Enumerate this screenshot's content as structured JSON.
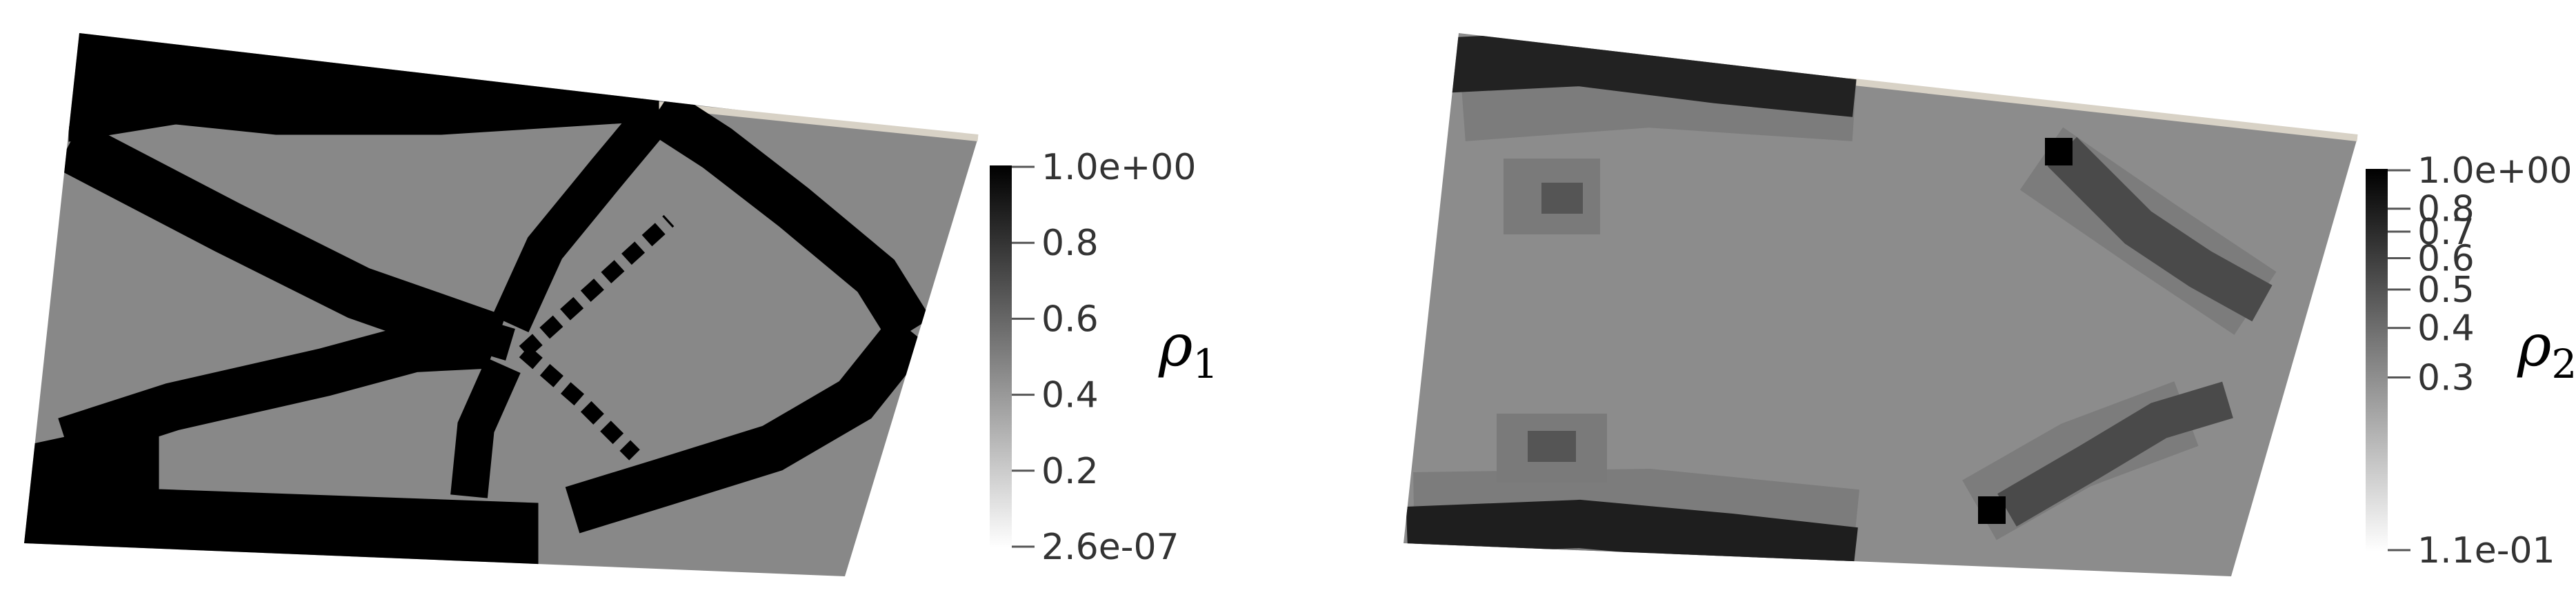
{
  "panels": [
    {
      "symbol": "ρ",
      "subscript": "1",
      "colorbar": {
        "max_label": "1.0e+00",
        "min_label": "2.6e-07",
        "ticks": [
          {
            "label": "0.8",
            "value": 0.8
          },
          {
            "label": "0.6",
            "value": 0.6
          },
          {
            "label": "0.4",
            "value": 0.4
          },
          {
            "label": "0.2",
            "value": 0.2
          }
        ]
      }
    },
    {
      "symbol": "ρ",
      "subscript": "2",
      "colorbar": {
        "max_label": "1.0e+00",
        "min_label": "1.1e-01",
        "scale": "log",
        "ticks": [
          {
            "label": "0.8",
            "value": 0.8
          },
          {
            "label": "0.7",
            "value": 0.7
          },
          {
            "label": "0.6",
            "value": 0.6
          },
          {
            "label": "0.5",
            "value": 0.5
          },
          {
            "label": "0.4",
            "value": 0.4
          },
          {
            "label": "0.3",
            "value": 0.3
          }
        ]
      }
    }
  ],
  "colors": {
    "solid": "#000000",
    "void": "#888888",
    "edge": "#d8d2c6"
  }
}
